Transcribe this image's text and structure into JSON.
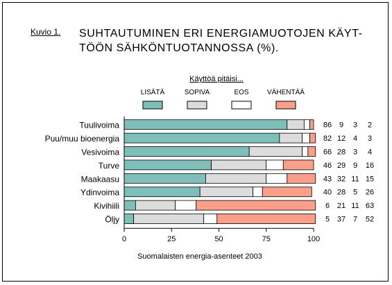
{
  "figure_label": "Kuvio 1.",
  "title_line1": "SUHTAUTUMINEN ERI ENERGIAMUOTOJEN KÄYT-",
  "title_line2": "TÖÖN SÄHKÖNTUOTANNOSSA (%).",
  "source": "Suomalaisten energia-asenteet 2003",
  "chart_data": {
    "type": "bar",
    "orientation": "horizontal",
    "stacked": true,
    "legend_title": "Käyttöä pitäisi...",
    "categories": [
      "Tuulivoima",
      "Puu/muu bioenergia",
      "Vesivoima",
      "Turve",
      "Maakaasu",
      "Ydinvoima",
      "Kivihiili",
      "Öljy"
    ],
    "series": [
      {
        "name": "LISÄTÄ",
        "color": "#7fbfb9",
        "values": [
          86,
          82,
          66,
          46,
          43,
          40,
          6,
          5
        ]
      },
      {
        "name": "SOPIVA",
        "color": "#dcdcdc",
        "values": [
          9,
          12,
          28,
          29,
          32,
          28,
          21,
          37
        ]
      },
      {
        "name": "EOS",
        "color": "#ffffff",
        "values": [
          3,
          4,
          3,
          9,
          11,
          5,
          11,
          7
        ]
      },
      {
        "name": "VÄHENTÄÄ",
        "color": "#fa9f8a",
        "values": [
          2,
          3,
          4,
          16,
          15,
          26,
          63,
          52
        ]
      }
    ],
    "xlim": [
      0,
      100
    ],
    "xticks": [
      0,
      25,
      50,
      75,
      100
    ],
    "legend_position": "top"
  }
}
